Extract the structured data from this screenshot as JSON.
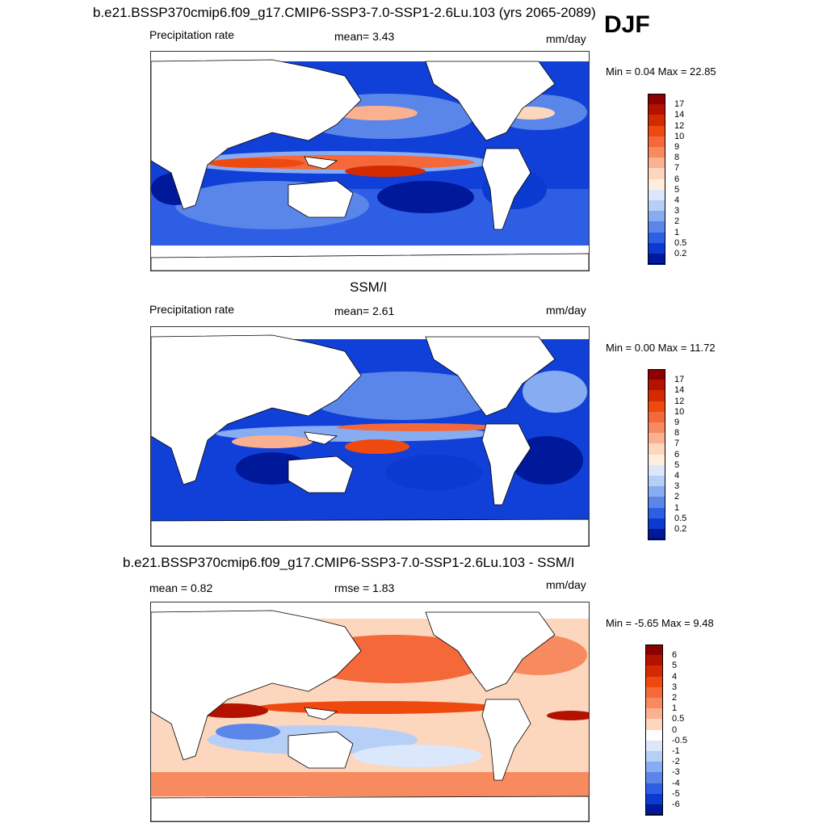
{
  "season": "DJF",
  "panels": [
    {
      "title": "b.e21.BSSP370cmip6.f09_g17.CMIP6-SSP3-7.0-SSP1-2.6Lu.103 (yrs 2065-2089)",
      "left_label": "Precipitation rate",
      "center_label": "mean=   3.43",
      "units": "mm/day",
      "minmax": "Min =   0.04 Max =  22.85",
      "colorbar": {
        "ticks": [
          "17",
          "14",
          "12",
          "10",
          "9",
          "8",
          "7",
          "6",
          "5",
          "4",
          "3",
          "2",
          "1",
          "0.5",
          "0.2"
        ],
        "colors": [
          "#8b0000",
          "#b41200",
          "#d42a00",
          "#ee4a10",
          "#f4683a",
          "#f88a60",
          "#fbb190",
          "#fcd6bd",
          "#ffeedd",
          "#dbe8fb",
          "#b6cff7",
          "#88acf1",
          "#5a86ea",
          "#2e5ee3",
          "#0a3acf",
          "#00189a"
        ]
      }
    },
    {
      "title": "SSM/I",
      "left_label": "Precipitation rate",
      "center_label": "mean=   2.61",
      "units": "mm/day",
      "minmax": "Min =   0.00 Max =  11.72",
      "colorbar": {
        "ticks": [
          "17",
          "14",
          "12",
          "10",
          "9",
          "8",
          "7",
          "6",
          "5",
          "4",
          "3",
          "2",
          "1",
          "0.5",
          "0.2"
        ],
        "colors": [
          "#8b0000",
          "#b41200",
          "#d42a00",
          "#ee4a10",
          "#f4683a",
          "#f88a60",
          "#fbb190",
          "#fcd6bd",
          "#ffeedd",
          "#dbe8fb",
          "#b6cff7",
          "#88acf1",
          "#5a86ea",
          "#2e5ee3",
          "#0a3acf",
          "#00189a"
        ]
      }
    },
    {
      "title": "b.e21.BSSP370cmip6.f09_g17.CMIP6-SSP3-7.0-SSP1-2.6Lu.103 - SSM/I",
      "left_label": "mean =   0.82",
      "center_label": "rmse =   1.83",
      "units": "mm/day",
      "minmax": "Min =  -5.65 Max =   9.48",
      "colorbar": {
        "ticks": [
          "6",
          "5",
          "4",
          "3",
          "2",
          "1",
          "0.5",
          "0",
          "-0.5",
          "-1",
          "-2",
          "-3",
          "-4",
          "-5",
          "-6"
        ],
        "colors": [
          "#8b0000",
          "#b41200",
          "#d42a00",
          "#ee4a10",
          "#f4683a",
          "#f88a60",
          "#fbb190",
          "#fcd6bd",
          "#ffffff",
          "#dbe8fb",
          "#b6cff7",
          "#88acf1",
          "#5a86ea",
          "#2e5ee3",
          "#0a3acf",
          "#00189a"
        ]
      }
    }
  ]
}
